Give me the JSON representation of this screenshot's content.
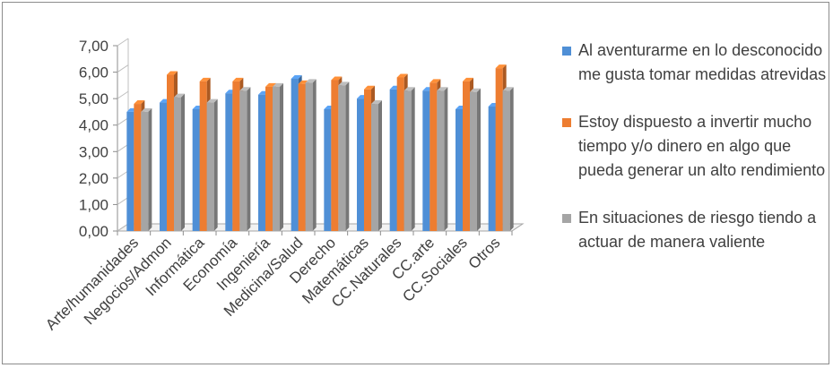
{
  "chart_data": {
    "type": "bar",
    "categories": [
      "Arte/humanidades",
      "Negocios/Admon",
      "Informática",
      "Economía",
      "Ingeniería",
      "Medicina/Salud",
      "Derecho",
      "Matemáticas",
      "CC.Naturales",
      "CC.arte",
      "CC.Sociales",
      "Otros"
    ],
    "series": [
      {
        "name": "Al aventurarme en lo desconocido me gusta tomar medidas atrevidas",
        "color": "#4f8fd6",
        "values": [
          4.5,
          4.85,
          4.6,
          5.2,
          5.15,
          5.75,
          4.6,
          5.0,
          5.35,
          5.3,
          4.6,
          4.7
        ]
      },
      {
        "name": "Estoy dispuesto a invertir mucho tiempo y/o dinero en algo que pueda generar un alto rendimiento",
        "color": "#ed7d31",
        "values": [
          4.8,
          5.9,
          5.65,
          5.65,
          5.45,
          5.55,
          5.7,
          5.35,
          5.8,
          5.6,
          5.65,
          6.15
        ]
      },
      {
        "name": "En situaciones de riesgo tiendo a actuar de manera valiente",
        "color": "#a5a5a5",
        "values": [
          4.5,
          5.05,
          4.85,
          5.3,
          5.45,
          5.6,
          5.5,
          4.8,
          5.3,
          5.3,
          5.25,
          5.3
        ]
      }
    ],
    "y_ticks": [
      "0,00",
      "1,00",
      "2,00",
      "3,00",
      "4,00",
      "5,00",
      "6,00",
      "7,00"
    ],
    "ylim": [
      0,
      7
    ],
    "legend": "right",
    "grid": false
  }
}
